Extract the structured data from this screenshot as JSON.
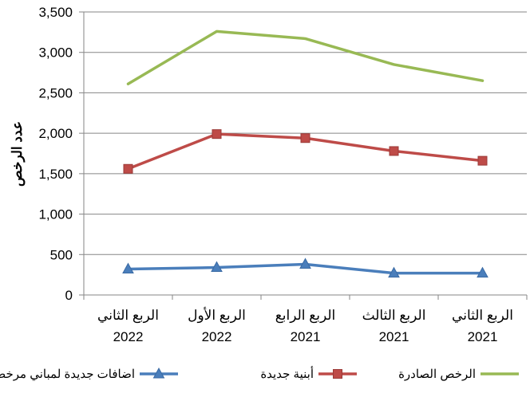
{
  "chart_data": {
    "type": "line",
    "title": "",
    "xlabel": "",
    "ylabel": "عدد الرخص",
    "ylim": [
      0,
      3500
    ],
    "yticks": [
      0,
      500,
      1000,
      1500,
      2000,
      2500,
      3000,
      3500
    ],
    "ytick_labels": [
      "0",
      "500",
      "1,000",
      "1,500",
      "2,000",
      "2,500",
      "3,000",
      "3,500"
    ],
    "x_direction": "right-to-left",
    "grid": "horizontal major gridlines",
    "legend_position": "bottom",
    "categories": [
      [
        "الربع الثاني",
        "2021"
      ],
      [
        "الربع الثالث",
        "2021"
      ],
      [
        "الربع الرابع",
        "2021"
      ],
      [
        "الربع الأول",
        "2022"
      ],
      [
        "الربع الثاني",
        "2022"
      ]
    ],
    "series": [
      {
        "name": "اضافات جديدة لمباني مرخصة",
        "color": "#4a7ebb",
        "marker": "triangle",
        "values": [
          270,
          270,
          380,
          340,
          320
        ]
      },
      {
        "name": "أبنية جديدة",
        "color": "#be4b48",
        "marker": "square",
        "values": [
          1660,
          1780,
          1940,
          1990,
          1560
        ]
      },
      {
        "name": "الرخص الصادرة",
        "color": "#98b954",
        "marker": "none",
        "values": [
          2650,
          2850,
          3170,
          3260,
          2610
        ]
      }
    ]
  }
}
